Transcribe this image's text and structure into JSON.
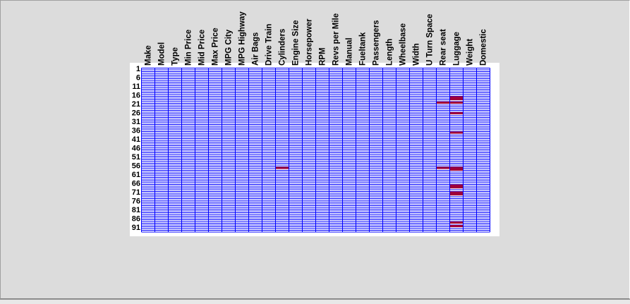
{
  "chart_data": {
    "type": "heatmap",
    "title": "",
    "xlabel": "",
    "ylabel": "",
    "columns": [
      "Make",
      "Model",
      "Type",
      "Min Price",
      "Mid Price",
      "Max Price",
      "MPG City",
      "MPG Highway",
      "Air Bags",
      "Drive Train",
      "Cylinders",
      "Engine Size",
      "Horsepower",
      "RPM",
      "Revs per Mile",
      "Manual",
      "Fueltank",
      "Passengers",
      "Length",
      "Wheelbase",
      "Width",
      "U Turn Space",
      "Rear seat",
      "Luggage",
      "Weight",
      "Domestic"
    ],
    "row_count": 93,
    "row_tick_labels": [
      "1",
      "6",
      "11",
      "16",
      "21",
      "26",
      "31",
      "36",
      "41",
      "46",
      "51",
      "56",
      "61",
      "66",
      "71",
      "76",
      "81",
      "86",
      "91"
    ],
    "row_tick_rows": [
      1,
      6,
      11,
      16,
      21,
      26,
      31,
      36,
      41,
      46,
      51,
      56,
      61,
      66,
      71,
      76,
      81,
      86,
      91
    ],
    "missing_cells": [
      {
        "row": 17,
        "column": "Luggage"
      },
      {
        "row": 18,
        "column": "Luggage"
      },
      {
        "row": 20,
        "column": "Rear seat"
      },
      {
        "row": 20,
        "column": "Luggage"
      },
      {
        "row": 26,
        "column": "Luggage"
      },
      {
        "row": 37,
        "column": "Luggage"
      },
      {
        "row": 57,
        "column": "Cylinders"
      },
      {
        "row": 57,
        "column": "Rear seat"
      },
      {
        "row": 57,
        "column": "Luggage"
      },
      {
        "row": 58,
        "column": "Luggage"
      },
      {
        "row": 67,
        "column": "Luggage"
      },
      {
        "row": 68,
        "column": "Luggage"
      },
      {
        "row": 71,
        "column": "Luggage"
      },
      {
        "row": 72,
        "column": "Luggage"
      },
      {
        "row": 88,
        "column": "Luggage"
      },
      {
        "row": 90,
        "column": "Luggage"
      }
    ],
    "colors": {
      "present": "#0000ff",
      "missing": "#a0003a",
      "background": "#ffffff",
      "window": "#dcdcdc"
    },
    "grid": true,
    "legend": "none"
  }
}
